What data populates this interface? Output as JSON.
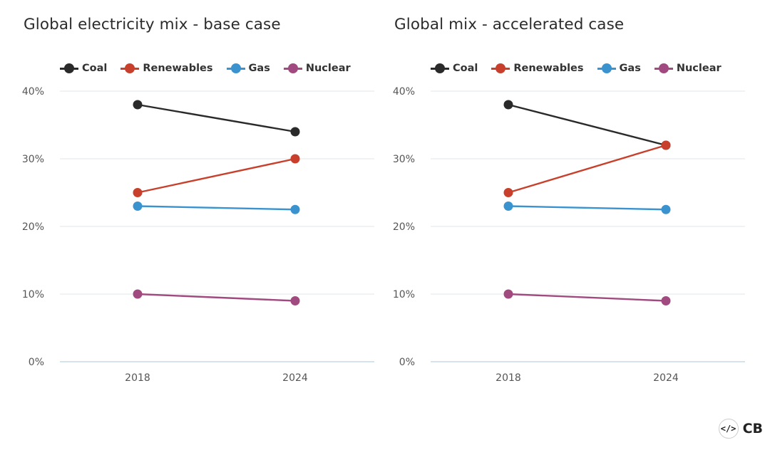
{
  "chart_data": [
    {
      "type": "line",
      "title": "Global electricity mix - base case",
      "categories": [
        "2018",
        "2024"
      ],
      "yticks": [
        "0%",
        "10%",
        "20%",
        "30%",
        "40%"
      ],
      "ylim": [
        0,
        40
      ],
      "grid": true,
      "legend_position": "top-left",
      "series": [
        {
          "name": "Coal",
          "color": "#2a2a2a",
          "values": [
            38,
            34
          ]
        },
        {
          "name": "Renewables",
          "color": "#c8402b",
          "values": [
            25,
            30
          ]
        },
        {
          "name": "Gas",
          "color": "#3a93cf",
          "values": [
            23,
            22.5
          ]
        },
        {
          "name": "Nuclear",
          "color": "#a04a80",
          "values": [
            10,
            9
          ]
        }
      ]
    },
    {
      "type": "line",
      "title": "Global mix - accelerated case",
      "categories": [
        "2018",
        "2024"
      ],
      "yticks": [
        "0%",
        "10%",
        "20%",
        "30%",
        "40%"
      ],
      "ylim": [
        0,
        40
      ],
      "grid": true,
      "legend_position": "top-left",
      "series": [
        {
          "name": "Coal",
          "color": "#2a2a2a",
          "values": [
            38,
            32
          ]
        },
        {
          "name": "Renewables",
          "color": "#c8402b",
          "values": [
            25,
            32
          ]
        },
        {
          "name": "Gas",
          "color": "#3a93cf",
          "values": [
            23,
            22.5
          ]
        },
        {
          "name": "Nuclear",
          "color": "#a04a80",
          "values": [
            10,
            9
          ]
        }
      ]
    }
  ],
  "brand": {
    "icon": "</>",
    "text": "CB",
    "icon_name": "code-brackets-icon"
  }
}
